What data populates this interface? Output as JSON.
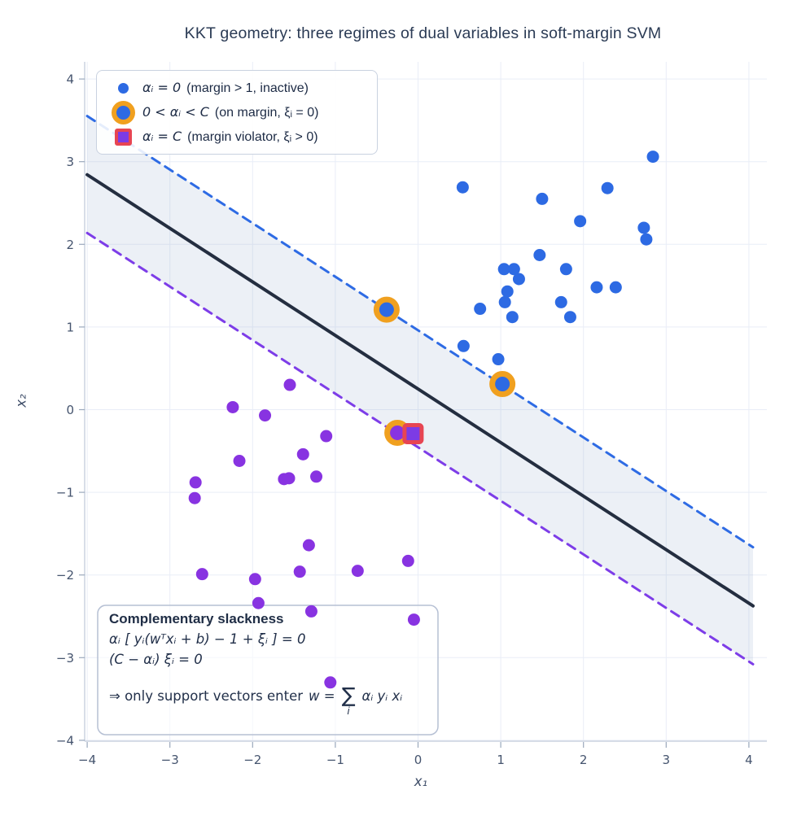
{
  "title": "KKT geometry: three regimes of dual variables in soft-margin SVM",
  "axes": {
    "xlabel": "x₁",
    "ylabel": "x₂"
  },
  "colors": {
    "grid": "#e9edf7",
    "spine": "#cbd4e0",
    "tick": "#9aa8bc",
    "tick_text": "#45546e",
    "blue_class": "#2d6ae3",
    "purple_class": "#8833e1",
    "sv_ring": "#f0a01f",
    "violator_fill": "#7c3be5",
    "violator_border": "#e74552",
    "boundary": "#242e40",
    "upper_margin": "#2e6be4",
    "lower_margin": "#7d3de8",
    "annotation_border": "#b6c0d4"
  },
  "legend": {
    "items": [
      {
        "marker": "dot",
        "math": "αᵢ = 0",
        "desc": "(margin > 1, inactive)"
      },
      {
        "marker": "ring",
        "math": "0 < αᵢ < C",
        "desc": "(on margin, ξᵢ = 0)"
      },
      {
        "marker": "square",
        "math": "αᵢ = C",
        "desc": "(margin violator, ξᵢ > 0)"
      }
    ]
  },
  "annotation": {
    "title": "Complementary slackness",
    "line1": "αᵢ [ yᵢ(wᵀxᵢ + b) − 1 + ξᵢ ] = 0",
    "line2": "(C − αᵢ) ξᵢ = 0",
    "conclusion": "⇒ only support vectors enter",
    "formula_pre": "w =",
    "sum": "∑",
    "sum_sub": "i",
    "formula_post": "αᵢ yᵢ xᵢ"
  },
  "chart_data": {
    "type": "scatter",
    "xlim": [
      -4,
      4
    ],
    "ylim": [
      -4,
      4
    ],
    "x_ticks": [
      -4,
      -3,
      -2,
      -1,
      0,
      1,
      2,
      3,
      4
    ],
    "y_ticks": [
      -4,
      -3,
      -2,
      -1,
      0,
      1,
      2,
      3,
      4
    ],
    "grid": true,
    "series": [
      {
        "id": "positive-class-inactive",
        "regime": "alpha_i = 0 (inactive)",
        "color": "#2d6ae3",
        "marker": "circle",
        "points": [
          [
            2.84,
            3.06
          ],
          [
            0.54,
            2.69
          ],
          [
            2.29,
            2.68
          ],
          [
            1.5,
            2.55
          ],
          [
            1.96,
            2.28
          ],
          [
            2.73,
            2.2
          ],
          [
            2.76,
            2.06
          ],
          [
            1.47,
            1.87
          ],
          [
            1.04,
            1.7
          ],
          [
            1.16,
            1.7
          ],
          [
            1.79,
            1.7
          ],
          [
            1.22,
            1.58
          ],
          [
            2.16,
            1.48
          ],
          [
            2.39,
            1.48
          ],
          [
            1.08,
            1.43
          ],
          [
            1.05,
            1.3
          ],
          [
            1.73,
            1.3
          ],
          [
            0.75,
            1.22
          ],
          [
            1.84,
            1.12
          ],
          [
            1.14,
            1.12
          ],
          [
            0.55,
            0.77
          ],
          [
            0.97,
            0.61
          ]
        ]
      },
      {
        "id": "negative-class-inactive",
        "regime": "alpha_i = 0 (inactive)",
        "color": "#8833e1",
        "marker": "circle",
        "points": [
          [
            -1.55,
            0.3
          ],
          [
            -2.24,
            0.03
          ],
          [
            -1.85,
            -0.07
          ],
          [
            -1.11,
            -0.32
          ],
          [
            -1.39,
            -0.54
          ],
          [
            -2.16,
            -0.62
          ],
          [
            -1.62,
            -0.84
          ],
          [
            -1.56,
            -0.83
          ],
          [
            -1.23,
            -0.81
          ],
          [
            -2.69,
            -0.88
          ],
          [
            -2.7,
            -1.07
          ],
          [
            -1.32,
            -1.64
          ],
          [
            -0.12,
            -1.83
          ],
          [
            -0.73,
            -1.95
          ],
          [
            -1.43,
            -1.96
          ],
          [
            -2.61,
            -1.99
          ],
          [
            -1.97,
            -2.05
          ],
          [
            -1.93,
            -2.34
          ],
          [
            -1.29,
            -2.44
          ],
          [
            -0.05,
            -2.54
          ],
          [
            -1.06,
            -3.3
          ]
        ]
      }
    ],
    "support_vectors": {
      "regime": "0 < alpha_i < C (on margin)",
      "ring_color": "#f0a01f",
      "points": [
        {
          "x": -0.38,
          "y": 1.21,
          "color": "#2d6ae3"
        },
        {
          "x": 1.02,
          "y": 0.31,
          "color": "#2d6ae3"
        },
        {
          "x": -0.25,
          "y": -0.28,
          "color": "#8833e1"
        }
      ]
    },
    "violators": {
      "regime": "alpha_i = C (margin violator)",
      "fill": "#7c3be5",
      "border": "#e74552",
      "points": [
        {
          "x": -0.06,
          "y": -0.29
        }
      ]
    },
    "lines": {
      "boundary": {
        "slope": -0.648,
        "intercept": 0.25,
        "color": "#242e40",
        "style": "solid"
      },
      "upper_margin": {
        "slope": -0.648,
        "intercept": 0.96,
        "color": "#2e6be4",
        "style": "dashed"
      },
      "lower_margin": {
        "slope": -0.648,
        "intercept": -0.455,
        "color": "#7d3de8",
        "style": "dashed"
      },
      "band_fill": "rgba(144,166,200,0.17)",
      "x_range": [
        -4,
        4.05
      ]
    }
  }
}
